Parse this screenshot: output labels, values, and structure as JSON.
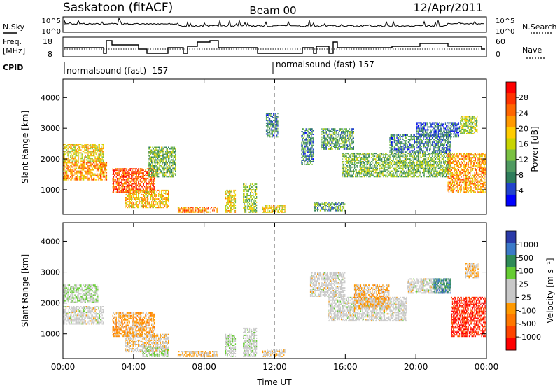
{
  "header": {
    "title": "Saskatoon (fitACF)",
    "beam": "Beam 00",
    "date": "12/Apr/2011"
  },
  "colors": {
    "power_scale": [
      "#0000ff",
      "#2244cc",
      "#2e7d5b",
      "#4f9a60",
      "#7ac142",
      "#c8d400",
      "#ffcc00",
      "#ff9900",
      "#ff6600",
      "#ff3300",
      "#ff0000"
    ],
    "velocity_scale": [
      "#2a3aa8",
      "#3b7ac8",
      "#2e8b57",
      "#66cc33",
      "#c8c8c8",
      "#c8c8c8",
      "#ff9900",
      "#ff7700",
      "#ff4400",
      "#ff0000"
    ]
  },
  "panels": {
    "nsky": {
      "label": "N.Sky",
      "right_label": "N.Search",
      "left_ticks": [
        "10^5",
        "10^0"
      ],
      "right_ticks": [
        "10^5",
        "10^0"
      ]
    },
    "freq": {
      "label": "Freq.",
      "unit": "[MHz]",
      "right_label": "Nave",
      "left_ticks": [
        "18",
        "8"
      ],
      "right_ticks": [
        "60",
        "0"
      ]
    },
    "cpid": {
      "label": "CPID",
      "segments": [
        {
          "text": "normalsound (fast) -157"
        },
        {
          "text": "normalsound (fast) 157"
        }
      ]
    }
  },
  "chart_data": [
    {
      "type": "heatmap",
      "name": "power",
      "ylabel": "Slant Range [km]",
      "xlabel": "",
      "y_ticks": [
        "1000",
        "2000",
        "3000",
        "4000"
      ],
      "ylim": [
        200,
        4600
      ],
      "xlim": [
        0,
        24
      ],
      "colorbar": {
        "label": "Power [dB]",
        "ticks": [
          "28",
          "24",
          "20",
          "16",
          "12",
          "8",
          "4"
        ],
        "range": [
          0,
          32
        ]
      },
      "regions": [
        {
          "t0": 0.0,
          "t1": 2.5,
          "r0": 1300,
          "r1": 1900,
          "v": 22
        },
        {
          "t0": 0.0,
          "t1": 2.3,
          "r0": 1900,
          "r1": 2500,
          "v": 18
        },
        {
          "t0": 2.8,
          "t1": 5.2,
          "r0": 900,
          "r1": 1700,
          "v": 26
        },
        {
          "t0": 3.5,
          "t1": 6.0,
          "r0": 400,
          "r1": 1000,
          "v": 20
        },
        {
          "t0": 4.8,
          "t1": 6.4,
          "r0": 1400,
          "r1": 2400,
          "v": 12
        },
        {
          "t0": 6.5,
          "t1": 8.8,
          "r0": 250,
          "r1": 450,
          "v": 22
        },
        {
          "t0": 9.2,
          "t1": 9.8,
          "r0": 250,
          "r1": 1000,
          "v": 18
        },
        {
          "t0": 10.2,
          "t1": 11.0,
          "r0": 250,
          "r1": 1200,
          "v": 14
        },
        {
          "t0": 11.5,
          "t1": 12.2,
          "r0": 2700,
          "r1": 3500,
          "v": 8
        },
        {
          "t0": 11.3,
          "t1": 12.6,
          "r0": 250,
          "r1": 500,
          "v": 18
        },
        {
          "t0": 13.5,
          "t1": 14.2,
          "r0": 1800,
          "r1": 3000,
          "v": 8
        },
        {
          "t0": 14.2,
          "t1": 16.0,
          "r0": 300,
          "r1": 600,
          "v": 10
        },
        {
          "t0": 14.6,
          "t1": 16.5,
          "r0": 2300,
          "r1": 3000,
          "v": 10
        },
        {
          "t0": 15.8,
          "t1": 22.0,
          "r0": 1400,
          "r1": 2200,
          "v": 12
        },
        {
          "t0": 18.5,
          "t1": 22.0,
          "r0": 2200,
          "r1": 2800,
          "v": 8
        },
        {
          "t0": 20.0,
          "t1": 22.5,
          "r0": 2700,
          "r1": 3200,
          "v": 6
        },
        {
          "t0": 21.8,
          "t1": 24.0,
          "r0": 900,
          "r1": 2200,
          "v": 22
        },
        {
          "t0": 22.5,
          "t1": 23.5,
          "r0": 2800,
          "r1": 3400,
          "v": 14
        }
      ]
    },
    {
      "type": "heatmap",
      "name": "velocity",
      "ylabel": "Slant Range [km]",
      "xlabel": "Time UT",
      "y_ticks": [
        "1000",
        "2000",
        "3000",
        "4000"
      ],
      "x_ticks": [
        "00:00",
        "04:00",
        "08:00",
        "12:00",
        "16:00",
        "20:00",
        "00:00"
      ],
      "ylim": [
        200,
        4600
      ],
      "xlim": [
        0,
        24
      ],
      "colorbar": {
        "label": "Velocity [m s⁻¹]",
        "ticks": [
          "1000",
          "500",
          "100",
          "25",
          "-25",
          "-100",
          "-500",
          "-1000"
        ],
        "range": [
          -1000,
          1000
        ]
      },
      "regions": [
        {
          "t0": 0.0,
          "t1": 2.3,
          "r0": 1300,
          "r1": 1900,
          "v": 0
        },
        {
          "t0": 0.0,
          "t1": 2.0,
          "r0": 2000,
          "r1": 2600,
          "v": 150
        },
        {
          "t0": 2.8,
          "t1": 5.2,
          "r0": 900,
          "r1": 1700,
          "v": -300
        },
        {
          "t0": 3.5,
          "t1": 6.0,
          "r0": 400,
          "r1": 1000,
          "v": -150
        },
        {
          "t0": 4.5,
          "t1": 6.0,
          "r0": 250,
          "r1": 600,
          "v": 120
        },
        {
          "t0": 6.5,
          "t1": 8.8,
          "r0": 250,
          "r1": 450,
          "v": -200
        },
        {
          "t0": 9.2,
          "t1": 9.8,
          "r0": 250,
          "r1": 1000,
          "v": 80
        },
        {
          "t0": 10.2,
          "t1": 11.0,
          "r0": 250,
          "r1": 1200,
          "v": 60
        },
        {
          "t0": 11.3,
          "t1": 12.6,
          "r0": 250,
          "r1": 500,
          "v": -120
        },
        {
          "t0": 14.0,
          "t1": 16.0,
          "r0": 2200,
          "r1": 3000,
          "v": 0
        },
        {
          "t0": 15.0,
          "t1": 19.5,
          "r0": 1400,
          "r1": 2200,
          "v": 0
        },
        {
          "t0": 16.5,
          "t1": 18.5,
          "r0": 1800,
          "r1": 2600,
          "v": -250
        },
        {
          "t0": 19.5,
          "t1": 22.0,
          "r0": 2300,
          "r1": 2800,
          "v": 0
        },
        {
          "t0": 21.0,
          "t1": 22.0,
          "r0": 2300,
          "r1": 2800,
          "v": 600
        },
        {
          "t0": 22.0,
          "t1": 24.0,
          "r0": 900,
          "r1": 2200,
          "v": -800
        },
        {
          "t0": 22.8,
          "t1": 23.6,
          "r0": 2800,
          "r1": 3300,
          "v": -200
        }
      ]
    }
  ],
  "cpid_change_hour": 12.0
}
